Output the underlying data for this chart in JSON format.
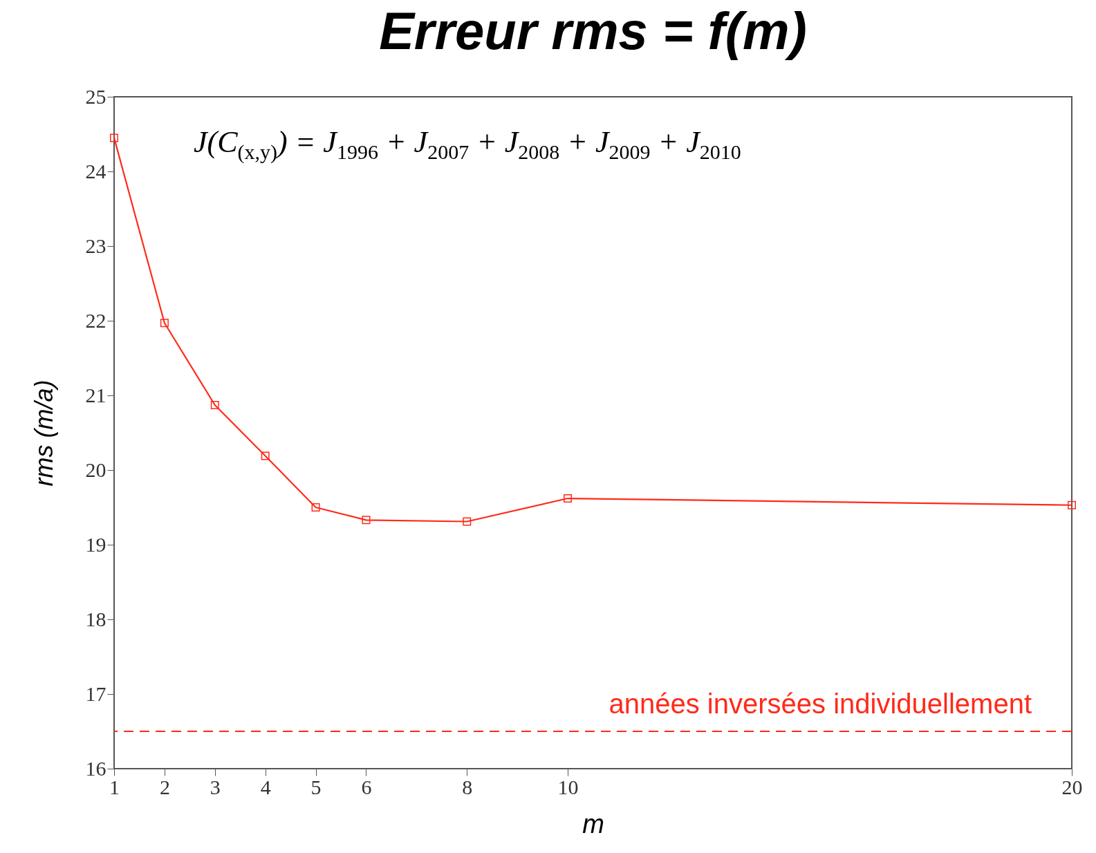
{
  "chart_data": {
    "type": "line",
    "title": "Erreur rms = f(m)",
    "xlabel": "m",
    "ylabel": "rms (m/a)",
    "x": [
      1,
      2,
      3,
      4,
      5,
      6,
      8,
      10,
      20
    ],
    "series": [
      {
        "color": "#ff2a1a",
        "values": [
          24.45,
          21.97,
          20.87,
          20.19,
          19.5,
          19.33,
          19.31,
          19.62,
          19.53
        ]
      }
    ],
    "xlim": [
      1,
      20
    ],
    "xticks": [
      1,
      2,
      3,
      4,
      5,
      6,
      8,
      10,
      20
    ],
    "ylim": [
      16,
      25
    ],
    "yticks": [
      16,
      17,
      18,
      19,
      20,
      21,
      22,
      23,
      24,
      25
    ],
    "marker": "square",
    "line_style": "solid",
    "grid": false,
    "ref_lines": [
      {
        "axis": "y",
        "value": 16.5,
        "label": "années inversées individuellement",
        "color": "#ff2a1a",
        "line_style": "dashed"
      }
    ],
    "annotations": [
      "J(C$_{(x,y)}$) = J$_{1996}$ + J$_{2007}$ + J$_{2008}$ + J$_{2009}$ + J$_{2010}$"
    ]
  }
}
